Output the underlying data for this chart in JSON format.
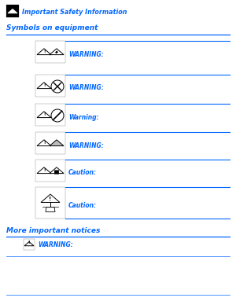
{
  "bg_color": "#FFFFFF",
  "blue_color": "#0066FF",
  "text_color": "#000000",
  "header_text": "Important Safety Information",
  "section_title": "Symbols on equipment",
  "rows": [
    {
      "label": "WARNING:",
      "type": "elec"
    },
    {
      "label": "WARNING:",
      "type": "no_touch"
    },
    {
      "label": "Warning:",
      "type": "no_hand"
    },
    {
      "label": "WARNING:",
      "type": "hot"
    },
    {
      "label": "Caution:",
      "type": "tip"
    },
    {
      "label": "Caution:",
      "type": "crane"
    }
  ],
  "footer_section": "More important notices",
  "footer_label": "WARNING:"
}
